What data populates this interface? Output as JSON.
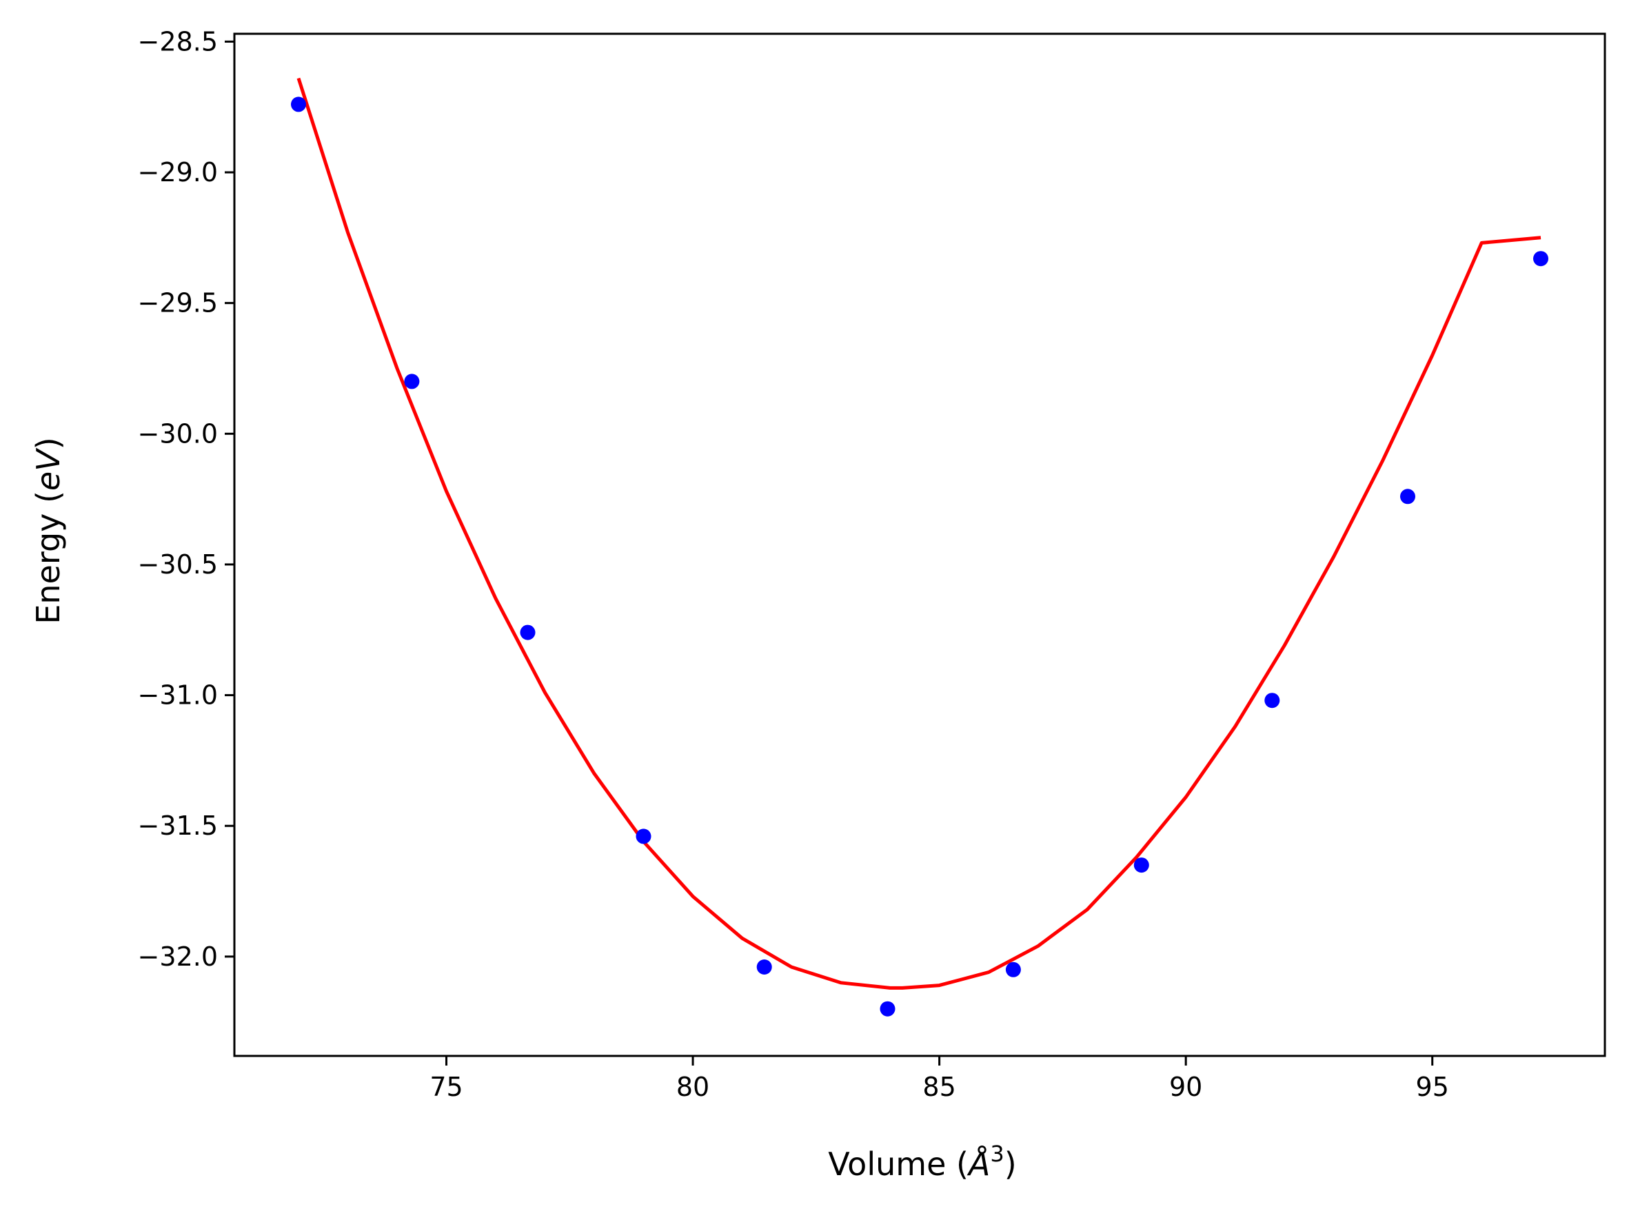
{
  "chart_data": {
    "type": "scatter",
    "title": "",
    "xlabel_main": "Volume (",
    "xlabel_var": "Å",
    "xlabel_sup": "3",
    "xlabel_end": ")",
    "ylabel_main": "Energy (",
    "ylabel_var": "eV",
    "ylabel_end": ")",
    "xlim": [
      70.7,
      98.5
    ],
    "ylim": [
      -32.38,
      -28.47
    ],
    "xticks": [
      {
        "value": 75,
        "label": "75"
      },
      {
        "value": 80,
        "label": "80"
      },
      {
        "value": 85,
        "label": "85"
      },
      {
        "value": 90,
        "label": "90"
      },
      {
        "value": 95,
        "label": "95"
      }
    ],
    "yticks": [
      {
        "value": -28.5,
        "label": "−28.5"
      },
      {
        "value": -29.0,
        "label": "−29.0"
      },
      {
        "value": -29.5,
        "label": "−29.5"
      },
      {
        "value": -30.0,
        "label": "−30.0"
      },
      {
        "value": -30.5,
        "label": "−30.5"
      },
      {
        "value": -31.0,
        "label": "−31.0"
      },
      {
        "value": -31.5,
        "label": "−31.5"
      },
      {
        "value": -32.0,
        "label": "−32.0"
      }
    ],
    "grid": false,
    "series": [
      {
        "kind": "points",
        "color": "#0000ff",
        "x": [
          72.0,
          74.3,
          76.65,
          79.0,
          81.45,
          83.95,
          86.5,
          89.1,
          91.75,
          94.5,
          97.2
        ],
        "y": [
          -28.74,
          -29.8,
          -30.76,
          -31.54,
          -32.04,
          -32.2,
          -32.05,
          -31.65,
          -31.02,
          -30.24,
          -29.33
        ]
      },
      {
        "kind": "fit-curve",
        "color": "#ff0000",
        "x": [
          72.0,
          73.0,
          74.0,
          75.0,
          76.0,
          77.0,
          78.0,
          79.0,
          80.0,
          81.0,
          82.0,
          83.0,
          84.0,
          84.25,
          85.0,
          86.0,
          87.0,
          88.0,
          89.0,
          90.0,
          91.0,
          92.0,
          93.0,
          94.0,
          95.0,
          96.0,
          97.2
        ],
        "y": [
          -28.64,
          -29.23,
          -29.75,
          -30.22,
          -30.63,
          -30.99,
          -31.3,
          -31.56,
          -31.77,
          -31.93,
          -32.04,
          -32.1,
          -32.12,
          -32.12,
          -32.11,
          -32.06,
          -31.96,
          -31.82,
          -31.62,
          -31.39,
          -31.12,
          -30.81,
          -30.47,
          -30.1,
          -29.7,
          -29.27,
          -29.25
        ]
      }
    ]
  }
}
